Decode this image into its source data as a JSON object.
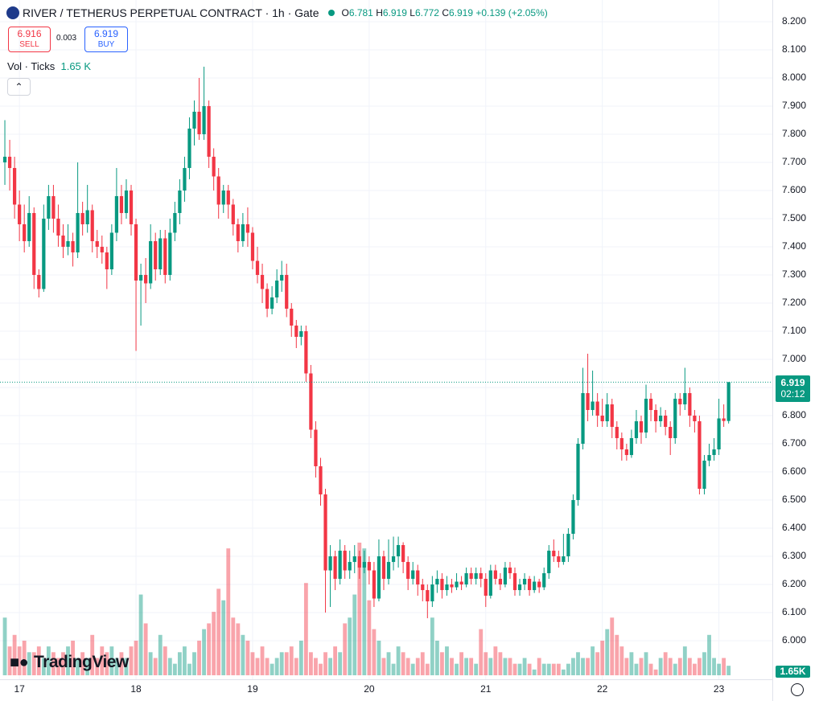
{
  "header": {
    "symbol": "RIVER / TETHERUS PERPETUAL CONTRACT · 1h · Gate",
    "o_label": "O",
    "o": "6.781",
    "h_label": "H",
    "h": "6.919",
    "l_label": "L",
    "l": "6.772",
    "c_label": "C",
    "c": "6.919",
    "change": "+0.139",
    "change_pct": "(+2.05%)",
    "sell_price": "6.916",
    "sell_label": "SELL",
    "spread": "0.003",
    "buy_price": "6.919",
    "buy_label": "BUY",
    "vol_label": "Vol · Ticks",
    "vol_value": "1.65 K",
    "price_badge": "6.919",
    "countdown": "02:12",
    "vol_badge": "1.65K",
    "watermark": "TradingView"
  },
  "chart_data": {
    "type": "candlestick",
    "up_color": "#089981",
    "down_color": "#f23645",
    "grid": true,
    "ylim": [
      5.863,
      8.277
    ],
    "yticks": [
      {
        "value": 8.2,
        "label": "8.200"
      },
      {
        "value": 8.1,
        "label": "8.100"
      },
      {
        "value": 8.0,
        "label": "8.000"
      },
      {
        "value": 7.9,
        "label": "7.900"
      },
      {
        "value": 7.8,
        "label": "7.800"
      },
      {
        "value": 7.7,
        "label": "7.700"
      },
      {
        "value": 7.6,
        "label": "7.600"
      },
      {
        "value": 7.5,
        "label": "7.500"
      },
      {
        "value": 7.4,
        "label": "7.400"
      },
      {
        "value": 7.3,
        "label": "7.300"
      },
      {
        "value": 7.2,
        "label": "7.200"
      },
      {
        "value": 7.1,
        "label": "7.100"
      },
      {
        "value": 7.0,
        "label": "7.000"
      },
      {
        "value": 6.9,
        "label": "6.900"
      },
      {
        "value": 6.8,
        "label": "6.800"
      },
      {
        "value": 6.7,
        "label": "6.700"
      },
      {
        "value": 6.6,
        "label": "6.600"
      },
      {
        "value": 6.5,
        "label": "6.500"
      },
      {
        "value": 6.4,
        "label": "6.400"
      },
      {
        "value": 6.3,
        "label": "6.300"
      },
      {
        "value": 6.2,
        "label": "6.200"
      },
      {
        "value": 6.1,
        "label": "6.100"
      },
      {
        "value": 6.0,
        "label": "6.000"
      }
    ],
    "xlim": [
      -4,
      155
    ],
    "xticks": [
      {
        "value": 0,
        "label": "17"
      },
      {
        "value": 24,
        "label": "18"
      },
      {
        "value": 48,
        "label": "19"
      },
      {
        "value": 72,
        "label": "20"
      },
      {
        "value": 96,
        "label": "21"
      },
      {
        "value": 120,
        "label": "22"
      },
      {
        "value": 144,
        "label": "23"
      }
    ],
    "current_price": 6.919,
    "x": [
      -3,
      -2,
      -1,
      0,
      1,
      2,
      3,
      4,
      5,
      6,
      7,
      8,
      9,
      10,
      11,
      12,
      13,
      14,
      15,
      16,
      17,
      18,
      19,
      20,
      21,
      22,
      23,
      24,
      25,
      26,
      27,
      28,
      29,
      30,
      31,
      32,
      33,
      34,
      35,
      36,
      37,
      38,
      39,
      40,
      41,
      42,
      43,
      44,
      45,
      46,
      47,
      48,
      49,
      50,
      51,
      52,
      53,
      54,
      55,
      56,
      57,
      58,
      59,
      60,
      61,
      62,
      63,
      64,
      65,
      66,
      67,
      68,
      69,
      70,
      71,
      72,
      73,
      74,
      75,
      76,
      77,
      78,
      79,
      80,
      81,
      82,
      83,
      84,
      85,
      86,
      87,
      88,
      89,
      90,
      91,
      92,
      93,
      94,
      95,
      96,
      97,
      98,
      99,
      100,
      101,
      102,
      103,
      104,
      105,
      106,
      107,
      108,
      109,
      110,
      111,
      112,
      113,
      114,
      115,
      116,
      117,
      118,
      119,
      120,
      121,
      122,
      123,
      124,
      125,
      126,
      127,
      128,
      129,
      130,
      131,
      132,
      133,
      134,
      135,
      136,
      137,
      138,
      139,
      140,
      141,
      142,
      143,
      144,
      145,
      146
    ],
    "ohlc": [
      [
        7.7,
        7.85,
        7.62,
        7.72
      ],
      [
        7.72,
        7.78,
        7.6,
        7.68
      ],
      [
        7.68,
        7.72,
        7.5,
        7.55
      ],
      [
        7.55,
        7.6,
        7.42,
        7.48
      ],
      [
        7.48,
        7.55,
        7.38,
        7.42
      ],
      [
        7.42,
        7.58,
        7.4,
        7.52
      ],
      [
        7.52,
        7.54,
        7.25,
        7.3
      ],
      [
        7.3,
        7.32,
        7.22,
        7.25
      ],
      [
        7.25,
        7.55,
        7.24,
        7.5
      ],
      [
        7.5,
        7.62,
        7.46,
        7.58
      ],
      [
        7.58,
        7.62,
        7.45,
        7.5
      ],
      [
        7.5,
        7.55,
        7.4,
        7.44
      ],
      [
        7.44,
        7.48,
        7.36,
        7.4
      ],
      [
        7.4,
        7.48,
        7.37,
        7.42
      ],
      [
        7.42,
        7.45,
        7.33,
        7.38
      ],
      [
        7.38,
        7.7,
        7.36,
        7.52
      ],
      [
        7.52,
        7.56,
        7.44,
        7.48
      ],
      [
        7.48,
        7.62,
        7.45,
        7.53
      ],
      [
        7.53,
        7.55,
        7.38,
        7.42
      ],
      [
        7.42,
        7.46,
        7.36,
        7.4
      ],
      [
        7.4,
        7.44,
        7.34,
        7.38
      ],
      [
        7.38,
        7.4,
        7.25,
        7.32
      ],
      [
        7.32,
        7.48,
        7.3,
        7.45
      ],
      [
        7.45,
        7.68,
        7.42,
        7.58
      ],
      [
        7.58,
        7.62,
        7.48,
        7.52
      ],
      [
        7.52,
        7.64,
        7.5,
        7.6
      ],
      [
        7.6,
        7.62,
        7.44,
        7.48
      ],
      [
        7.48,
        7.5,
        7.03,
        7.28
      ],
      [
        7.28,
        7.34,
        7.12,
        7.3
      ],
      [
        7.3,
        7.36,
        7.2,
        7.27
      ],
      [
        7.27,
        7.48,
        7.25,
        7.42
      ],
      [
        7.42,
        7.45,
        7.28,
        7.32
      ],
      [
        7.32,
        7.46,
        7.3,
        7.43
      ],
      [
        7.43,
        7.46,
        7.27,
        7.3
      ],
      [
        7.3,
        7.5,
        7.28,
        7.45
      ],
      [
        7.45,
        7.56,
        7.42,
        7.52
      ],
      [
        7.52,
        7.64,
        7.48,
        7.6
      ],
      [
        7.6,
        7.72,
        7.56,
        7.68
      ],
      [
        7.68,
        7.86,
        7.64,
        7.82
      ],
      [
        7.82,
        7.92,
        7.76,
        7.88
      ],
      [
        7.88,
        8.0,
        7.78,
        7.8
      ],
      [
        7.8,
        8.04,
        7.78,
        7.9
      ],
      [
        7.9,
        7.92,
        7.68,
        7.72
      ],
      [
        7.72,
        7.75,
        7.6,
        7.65
      ],
      [
        7.65,
        7.68,
        7.5,
        7.55
      ],
      [
        7.55,
        7.62,
        7.52,
        7.6
      ],
      [
        7.6,
        7.62,
        7.5,
        7.55
      ],
      [
        7.55,
        7.57,
        7.44,
        7.48
      ],
      [
        7.48,
        7.5,
        7.38,
        7.42
      ],
      [
        7.42,
        7.52,
        7.4,
        7.48
      ],
      [
        7.48,
        7.54,
        7.4,
        7.45
      ],
      [
        7.45,
        7.47,
        7.32,
        7.35
      ],
      [
        7.35,
        7.4,
        7.27,
        7.3
      ],
      [
        7.3,
        7.34,
        7.2,
        7.25
      ],
      [
        7.25,
        7.27,
        7.15,
        7.18
      ],
      [
        7.18,
        7.26,
        7.16,
        7.22
      ],
      [
        7.22,
        7.32,
        7.2,
        7.28
      ],
      [
        7.28,
        7.35,
        7.24,
        7.3
      ],
      [
        7.3,
        7.34,
        7.15,
        7.18
      ],
      [
        7.18,
        7.2,
        7.08,
        7.12
      ],
      [
        7.12,
        7.14,
        7.04,
        7.08
      ],
      [
        7.08,
        7.12,
        7.05,
        7.1
      ],
      [
        7.1,
        7.12,
        6.92,
        6.95
      ],
      [
        6.95,
        6.98,
        6.72,
        6.75
      ],
      [
        6.75,
        6.78,
        6.58,
        6.62
      ],
      [
        6.62,
        6.65,
        6.48,
        6.52
      ],
      [
        6.52,
        6.54,
        6.1,
        6.25
      ],
      [
        6.25,
        6.34,
        6.12,
        6.3
      ],
      [
        6.3,
        6.32,
        6.18,
        6.22
      ],
      [
        6.22,
        6.36,
        6.2,
        6.32
      ],
      [
        6.32,
        6.34,
        6.22,
        6.25
      ],
      [
        6.25,
        6.32,
        6.22,
        6.28
      ],
      [
        6.28,
        6.34,
        6.24,
        6.3
      ],
      [
        6.3,
        6.32,
        6.22,
        6.26
      ],
      [
        6.26,
        6.32,
        6.24,
        6.28
      ],
      [
        6.28,
        6.3,
        6.2,
        6.25
      ],
      [
        6.25,
        6.28,
        6.12,
        6.15
      ],
      [
        6.15,
        6.36,
        6.14,
        6.3
      ],
      [
        6.3,
        6.32,
        6.18,
        6.22
      ],
      [
        6.22,
        6.36,
        6.2,
        6.28
      ],
      [
        6.28,
        6.37,
        6.25,
        6.3
      ],
      [
        6.3,
        6.37,
        6.26,
        6.34
      ],
      [
        6.34,
        6.35,
        6.24,
        6.28
      ],
      [
        6.28,
        6.3,
        6.18,
        6.22
      ],
      [
        6.22,
        6.28,
        6.2,
        6.25
      ],
      [
        6.25,
        6.27,
        6.16,
        6.2
      ],
      [
        6.2,
        6.22,
        6.14,
        6.18
      ],
      [
        6.18,
        6.2,
        6.08,
        6.14
      ],
      [
        6.14,
        6.23,
        6.12,
        6.2
      ],
      [
        6.2,
        6.25,
        6.17,
        6.22
      ],
      [
        6.22,
        6.24,
        6.15,
        6.18
      ],
      [
        6.18,
        6.23,
        6.16,
        6.2
      ],
      [
        6.2,
        6.22,
        6.17,
        6.19
      ],
      [
        6.19,
        6.24,
        6.18,
        6.21
      ],
      [
        6.21,
        6.23,
        6.18,
        6.2
      ],
      [
        6.2,
        6.26,
        6.19,
        6.24
      ],
      [
        6.24,
        6.26,
        6.2,
        6.22
      ],
      [
        6.22,
        6.26,
        6.2,
        6.24
      ],
      [
        6.24,
        6.26,
        6.19,
        6.22
      ],
      [
        6.22,
        6.24,
        6.12,
        6.16
      ],
      [
        6.16,
        6.27,
        6.15,
        6.25
      ],
      [
        6.25,
        6.27,
        6.2,
        6.22
      ],
      [
        6.22,
        6.24,
        6.18,
        6.2
      ],
      [
        6.2,
        6.28,
        6.19,
        6.26
      ],
      [
        6.26,
        6.28,
        6.22,
        6.24
      ],
      [
        6.24,
        6.26,
        6.16,
        6.18
      ],
      [
        6.18,
        6.22,
        6.16,
        6.2
      ],
      [
        6.2,
        6.24,
        6.18,
        6.22
      ],
      [
        6.22,
        6.23,
        6.16,
        6.18
      ],
      [
        6.18,
        6.23,
        6.17,
        6.21
      ],
      [
        6.21,
        6.22,
        6.17,
        6.19
      ],
      [
        6.19,
        6.26,
        6.18,
        6.24
      ],
      [
        6.24,
        6.34,
        6.22,
        6.32
      ],
      [
        6.32,
        6.36,
        6.28,
        6.3
      ],
      [
        6.3,
        6.32,
        6.26,
        6.28
      ],
      [
        6.28,
        6.38,
        6.27,
        6.3
      ],
      [
        6.3,
        6.4,
        6.28,
        6.38
      ],
      [
        6.38,
        6.52,
        6.36,
        6.5
      ],
      [
        6.5,
        6.72,
        6.48,
        6.7
      ],
      [
        6.7,
        6.97,
        6.68,
        6.88
      ],
      [
        6.88,
        7.02,
        6.78,
        6.82
      ],
      [
        6.82,
        6.96,
        6.8,
        6.85
      ],
      [
        6.85,
        6.88,
        6.76,
        6.8
      ],
      [
        6.8,
        6.86,
        6.76,
        6.78
      ],
      [
        6.78,
        6.88,
        6.76,
        6.84
      ],
      [
        6.84,
        6.86,
        6.72,
        6.76
      ],
      [
        6.76,
        6.78,
        6.68,
        6.72
      ],
      [
        6.72,
        6.74,
        6.64,
        6.68
      ],
      [
        6.68,
        6.7,
        6.64,
        6.66
      ],
      [
        6.66,
        6.75,
        6.65,
        6.72
      ],
      [
        6.72,
        6.82,
        6.7,
        6.78
      ],
      [
        6.78,
        6.8,
        6.7,
        6.74
      ],
      [
        6.74,
        6.91,
        6.72,
        6.86
      ],
      [
        6.86,
        6.88,
        6.78,
        6.82
      ],
      [
        6.82,
        6.84,
        6.74,
        6.78
      ],
      [
        6.78,
        6.83,
        6.76,
        6.8
      ],
      [
        6.8,
        6.82,
        6.73,
        6.76
      ],
      [
        6.76,
        6.78,
        6.66,
        6.72
      ],
      [
        6.72,
        6.88,
        6.7,
        6.86
      ],
      [
        6.86,
        6.88,
        6.8,
        6.84
      ],
      [
        6.84,
        6.97,
        6.82,
        6.88
      ],
      [
        6.88,
        6.9,
        6.76,
        6.8
      ],
      [
        6.8,
        6.82,
        6.74,
        6.78
      ],
      [
        6.78,
        6.8,
        6.52,
        6.54
      ],
      [
        6.54,
        6.66,
        6.52,
        6.64
      ],
      [
        6.64,
        6.7,
        6.62,
        6.66
      ],
      [
        6.66,
        6.72,
        6.64,
        6.68
      ],
      [
        6.68,
        6.86,
        6.66,
        6.79
      ],
      [
        6.79,
        6.84,
        6.76,
        6.781
      ],
      [
        6.781,
        6.919,
        6.772,
        6.919
      ]
    ],
    "volume": [
      10,
      5,
      7,
      5,
      6,
      4,
      4,
      5,
      3,
      5,
      4,
      3,
      4,
      5,
      6,
      3,
      4,
      3,
      7,
      3,
      5,
      4,
      5,
      3,
      4,
      3,
      5,
      6,
      14,
      9,
      4,
      3,
      7,
      5,
      3,
      2,
      4,
      5,
      2,
      4,
      6,
      8,
      9,
      11,
      15,
      13,
      22,
      10,
      9,
      7,
      6,
      4,
      3,
      5,
      3,
      2,
      3,
      4,
      4,
      5,
      3,
      6,
      16,
      4,
      3,
      2,
      4,
      3,
      5,
      4,
      9,
      10,
      14,
      23,
      22,
      13,
      8,
      6,
      3,
      4,
      2,
      5,
      4,
      3,
      2,
      3,
      4,
      2,
      10,
      6,
      4,
      5,
      3,
      2,
      4,
      3,
      3,
      2,
      8,
      4,
      3,
      5,
      4,
      3,
      3,
      2,
      2,
      3,
      2,
      1,
      3,
      2,
      2,
      2,
      2,
      1,
      2,
      3,
      4,
      3,
      3,
      5,
      4,
      6,
      8,
      10,
      7,
      5,
      3,
      4,
      2,
      3,
      4,
      2,
      1,
      3,
      4,
      3,
      2,
      3,
      5,
      3,
      2,
      3,
      4,
      7,
      3,
      2,
      3,
      1.65
    ]
  }
}
